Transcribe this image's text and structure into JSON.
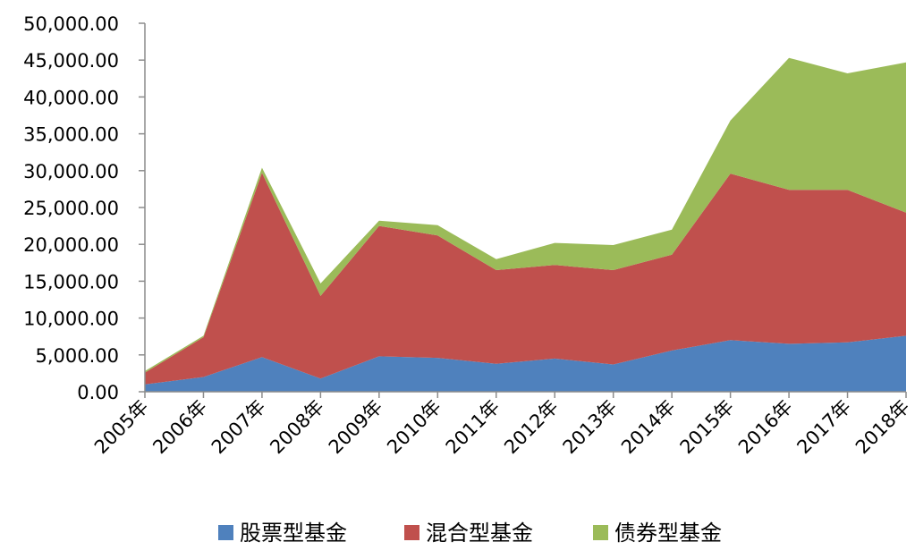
{
  "chart_data": {
    "type": "area",
    "stacked": true,
    "categories": [
      "2005年",
      "2006年",
      "2007年",
      "2008年",
      "2009年",
      "2010年",
      "2011年",
      "2012年",
      "2013年",
      "2014年",
      "2015年",
      "2016年",
      "2017年",
      "2018年"
    ],
    "series": [
      {
        "name": "股票型基金",
        "color": "#4F81BD",
        "values": [
          1000,
          2000,
          4700,
          1800,
          4800,
          4600,
          3800,
          4500,
          3700,
          5600,
          7000,
          6500,
          6700,
          7600
        ]
      },
      {
        "name": "混合型基金",
        "color": "#C0504D",
        "values": [
          1600,
          5400,
          25000,
          11200,
          17700,
          16600,
          12700,
          12700,
          12800,
          13000,
          22600,
          20900,
          20700,
          16700
        ]
      },
      {
        "name": "债券型基金",
        "color": "#9BBB59",
        "values": [
          200,
          200,
          700,
          1700,
          700,
          1400,
          1500,
          3000,
          3400,
          3400,
          7200,
          17900,
          15800,
          20400
        ]
      }
    ],
    "yticks": [
      "0.00",
      "5,000.00",
      "10,000.00",
      "15,000.00",
      "20,000.00",
      "25,000.00",
      "30,000.00",
      "35,000.00",
      "40,000.00",
      "45,000.00",
      "50,000.00"
    ],
    "ylim": [
      0,
      50000
    ],
    "grid": false,
    "legend_position": "bottom"
  }
}
